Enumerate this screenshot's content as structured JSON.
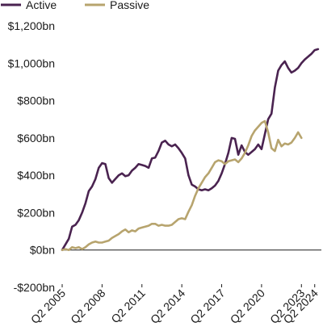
{
  "chart_data": {
    "type": "line",
    "title": "",
    "xlabel": "",
    "ylabel": "",
    "legend_position": "top-left",
    "grid": false,
    "ylim": [
      -200,
      1200
    ],
    "y_ticks": [
      {
        "value": 1200,
        "label": "$1,200bn"
      },
      {
        "value": 1000,
        "label": "$1,000bn"
      },
      {
        "value": 800,
        "label": "$800bn"
      },
      {
        "value": 600,
        "label": "$600bn"
      },
      {
        "value": 400,
        "label": "$400bn"
      },
      {
        "value": 200,
        "label": "$200bn"
      },
      {
        "value": 0,
        "label": "$0bn"
      },
      {
        "value": -200,
        "label": "-$200bn"
      }
    ],
    "x_range": [
      "Q2 2005",
      "Q2 2025"
    ],
    "x_ticks": [
      "Q2 2005",
      "Q2 2008",
      "Q2 2011",
      "Q2 2014",
      "Q2 2017",
      "Q2 2020",
      "Q2 2023",
      "Q2 2024"
    ],
    "x_tick_positions": [
      0,
      12,
      24,
      36,
      48,
      60,
      72,
      76
    ],
    "series": [
      {
        "name": "Active",
        "color": "#4a2350",
        "points": [
          [
            0,
            0
          ],
          [
            2,
            60
          ],
          [
            3,
            125
          ],
          [
            4,
            135
          ],
          [
            5,
            160
          ],
          [
            6,
            200
          ],
          [
            7,
            250
          ],
          [
            8,
            315
          ],
          [
            9,
            340
          ],
          [
            10,
            380
          ],
          [
            11,
            440
          ],
          [
            12,
            465
          ],
          [
            13,
            460
          ],
          [
            14,
            385
          ],
          [
            15,
            360
          ],
          [
            16,
            380
          ],
          [
            17,
            400
          ],
          [
            18,
            410
          ],
          [
            19,
            395
          ],
          [
            20,
            400
          ],
          [
            21,
            425
          ],
          [
            22,
            440
          ],
          [
            23,
            460
          ],
          [
            24,
            455
          ],
          [
            25,
            450
          ],
          [
            26,
            440
          ],
          [
            27,
            490
          ],
          [
            28,
            495
          ],
          [
            29,
            530
          ],
          [
            30,
            575
          ],
          [
            31,
            585
          ],
          [
            32,
            565
          ],
          [
            33,
            555
          ],
          [
            34,
            565
          ],
          [
            35,
            545
          ],
          [
            36,
            520
          ],
          [
            37,
            490
          ],
          [
            38,
            400
          ],
          [
            39,
            350
          ],
          [
            40,
            340
          ],
          [
            41,
            325
          ],
          [
            42,
            320
          ],
          [
            43,
            325
          ],
          [
            44,
            320
          ],
          [
            45,
            330
          ],
          [
            46,
            345
          ],
          [
            47,
            370
          ],
          [
            48,
            410
          ],
          [
            49,
            460
          ],
          [
            50,
            520
          ],
          [
            51,
            600
          ],
          [
            52,
            595
          ],
          [
            53,
            510
          ],
          [
            54,
            560
          ],
          [
            55,
            525
          ],
          [
            56,
            510
          ],
          [
            57,
            525
          ],
          [
            58,
            540
          ],
          [
            59,
            565
          ],
          [
            60,
            540
          ],
          [
            61,
            620
          ],
          [
            62,
            700
          ],
          [
            63,
            730
          ],
          [
            64,
            870
          ],
          [
            65,
            960
          ],
          [
            66,
            990
          ],
          [
            67,
            1010
          ],
          [
            68,
            975
          ],
          [
            69,
            950
          ],
          [
            70,
            960
          ],
          [
            71,
            975
          ],
          [
            72,
            1000
          ],
          [
            73,
            1020
          ],
          [
            74,
            1035
          ],
          [
            75,
            1050
          ],
          [
            76,
            1070
          ],
          [
            77,
            1075
          ]
        ]
      },
      {
        "name": "Passive",
        "color": "#b7a46e",
        "points": [
          [
            0,
            0
          ],
          [
            1,
            5
          ],
          [
            2,
            0
          ],
          [
            3,
            15
          ],
          [
            4,
            10
          ],
          [
            5,
            15
          ],
          [
            6,
            5
          ],
          [
            7,
            15
          ],
          [
            8,
            30
          ],
          [
            9,
            40
          ],
          [
            10,
            45
          ],
          [
            11,
            40
          ],
          [
            12,
            40
          ],
          [
            13,
            45
          ],
          [
            14,
            50
          ],
          [
            15,
            65
          ],
          [
            16,
            75
          ],
          [
            17,
            85
          ],
          [
            18,
            100
          ],
          [
            19,
            110
          ],
          [
            20,
            95
          ],
          [
            21,
            105
          ],
          [
            22,
            100
          ],
          [
            23,
            115
          ],
          [
            24,
            120
          ],
          [
            25,
            125
          ],
          [
            26,
            130
          ],
          [
            27,
            140
          ],
          [
            28,
            140
          ],
          [
            29,
            130
          ],
          [
            30,
            135
          ],
          [
            31,
            130
          ],
          [
            32,
            130
          ],
          [
            33,
            135
          ],
          [
            34,
            150
          ],
          [
            35,
            165
          ],
          [
            36,
            170
          ],
          [
            37,
            165
          ],
          [
            38,
            205
          ],
          [
            39,
            240
          ],
          [
            40,
            290
          ],
          [
            41,
            330
          ],
          [
            42,
            360
          ],
          [
            43,
            390
          ],
          [
            44,
            410
          ],
          [
            45,
            440
          ],
          [
            46,
            470
          ],
          [
            47,
            480
          ],
          [
            48,
            475
          ],
          [
            49,
            460
          ],
          [
            50,
            475
          ],
          [
            51,
            480
          ],
          [
            52,
            485
          ],
          [
            53,
            470
          ],
          [
            54,
            490
          ],
          [
            55,
            520
          ],
          [
            56,
            560
          ],
          [
            57,
            610
          ],
          [
            58,
            640
          ],
          [
            59,
            660
          ],
          [
            60,
            680
          ],
          [
            61,
            690
          ],
          [
            62,
            630
          ],
          [
            63,
            545
          ],
          [
            64,
            530
          ],
          [
            65,
            590
          ],
          [
            66,
            555
          ],
          [
            67,
            570
          ],
          [
            68,
            565
          ],
          [
            69,
            575
          ],
          [
            70,
            600
          ],
          [
            71,
            630
          ],
          [
            72,
            600
          ]
        ]
      }
    ]
  }
}
